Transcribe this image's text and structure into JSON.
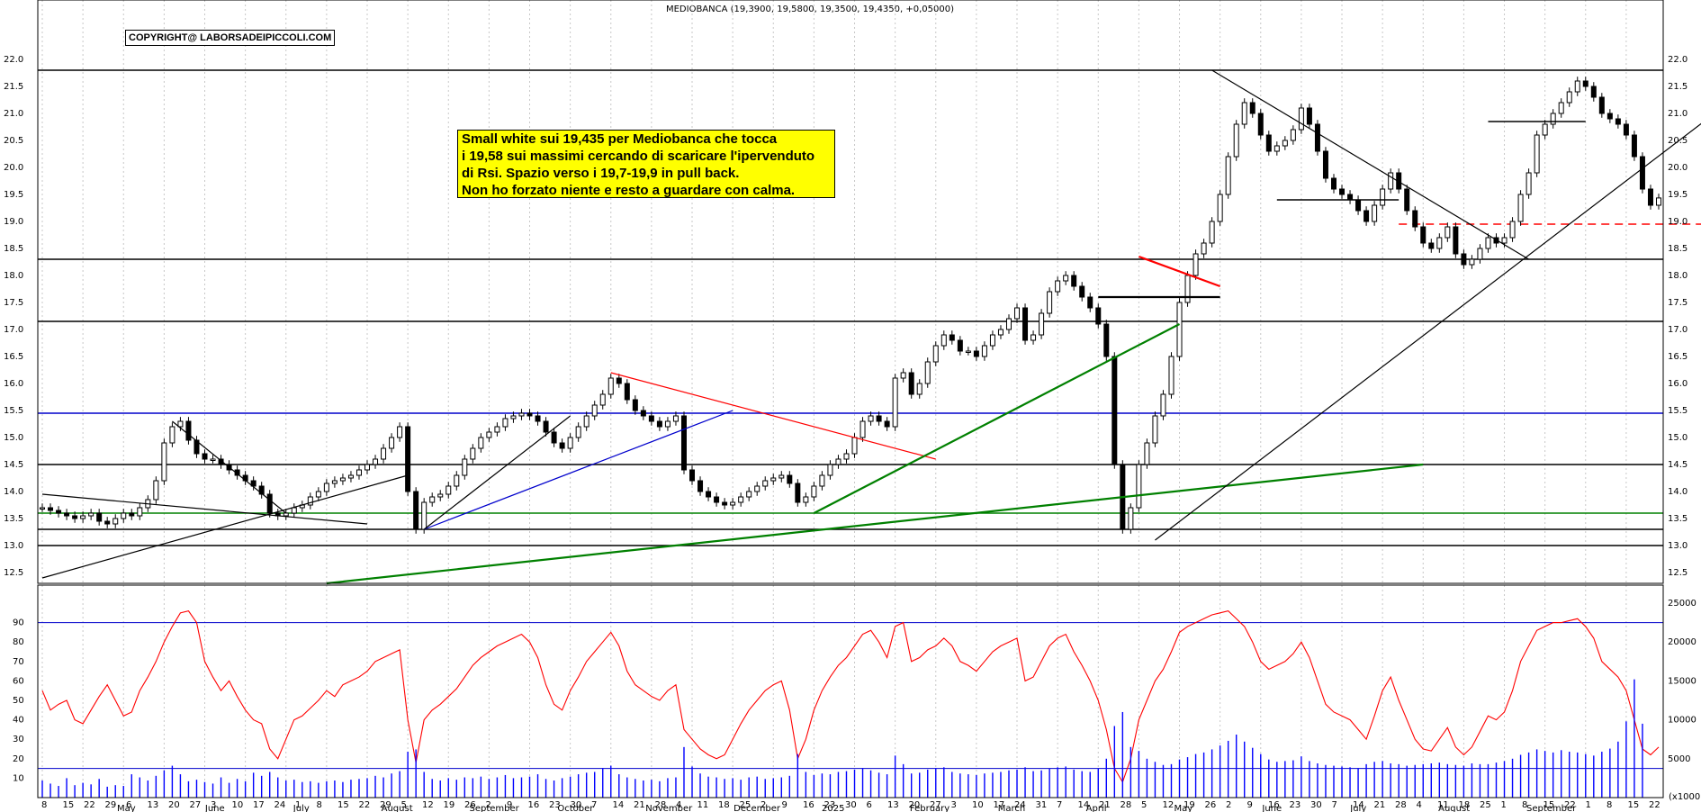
{
  "header": {
    "title": "MEDIOBANCA (19,3900, 19,5800, 19,3500, 19,4350, +0,05000)",
    "copyright": "COPYRIGHT@ LABORSADEIPICCOLI.COM"
  },
  "annotation": {
    "lines": [
      "Small white sui 19,435 per Mediobanca che tocca",
      "i 19,58 sui massimi cercando di scaricare l'ipervenduto",
      "di Rsi. Spazio verso i 19,7-19,9 in pull back.",
      "Non ho forzato niente e resto a guardare con calma."
    ]
  },
  "colors": {
    "price": "#000000",
    "rsi": "#ff0000",
    "volume": "#0000ff",
    "support_blue": "#0000cc",
    "support_green": "#008000",
    "trend_red": "#ff0000",
    "grid": "#c8c8c8"
  },
  "chart_data": [
    {
      "type": "candlestick",
      "title": "MEDIOBANCA (19,3900, 19,5800, 19,3500, 19,4350, +0,05000)",
      "ylim": [
        12.3,
        22.2
      ],
      "y_ticks": [
        "12.5",
        "13.0",
        "13.5",
        "14.0",
        "14.5",
        "15.0",
        "15.5",
        "16.0",
        "16.5",
        "17.0",
        "17.5",
        "18.0",
        "18.5",
        "19.0",
        "19.5",
        "20.0",
        "20.5",
        "21.0",
        "21.5",
        "22.0"
      ],
      "horizontal_levels": [
        {
          "value": 21.8,
          "color": "#000000"
        },
        {
          "value": 18.3,
          "color": "#000000"
        },
        {
          "value": 17.15,
          "color": "#000000"
        },
        {
          "value": 15.45,
          "color": "#0000cc"
        },
        {
          "value": 14.5,
          "color": "#000000"
        },
        {
          "value": 13.6,
          "color": "#008000"
        },
        {
          "value": 13.3,
          "color": "#000000"
        },
        {
          "value": 13.0,
          "color": "#000000"
        },
        {
          "value": 18.95,
          "color": "#ff0000",
          "dashed": true
        }
      ],
      "last": {
        "open": 19.39,
        "high": 19.58,
        "low": 19.35,
        "close": 19.435,
        "change": 0.05
      },
      "closes": [
        13.7,
        13.65,
        13.6,
        13.55,
        13.5,
        13.55,
        13.6,
        13.45,
        13.4,
        13.5,
        13.6,
        13.55,
        13.7,
        13.85,
        14.2,
        14.9,
        15.2,
        15.3,
        14.95,
        14.7,
        14.6,
        14.6,
        14.5,
        14.4,
        14.3,
        14.2,
        14.1,
        13.95,
        13.6,
        13.55,
        13.6,
        13.7,
        13.75,
        13.9,
        14.0,
        14.15,
        14.2,
        14.25,
        14.3,
        14.4,
        14.5,
        14.6,
        14.8,
        15.0,
        15.2,
        14.0,
        13.3,
        13.8,
        13.9,
        13.95,
        14.1,
        14.3,
        14.6,
        14.8,
        15.0,
        15.1,
        15.2,
        15.35,
        15.4,
        15.45,
        15.4,
        15.3,
        15.1,
        14.9,
        14.8,
        15.0,
        15.2,
        15.4,
        15.6,
        15.8,
        16.1,
        16.0,
        15.7,
        15.5,
        15.4,
        15.3,
        15.2,
        15.3,
        15.4,
        14.4,
        14.2,
        14.0,
        13.9,
        13.8,
        13.75,
        13.8,
        13.9,
        14.0,
        14.1,
        14.2,
        14.25,
        14.3,
        14.15,
        13.8,
        13.9,
        14.1,
        14.3,
        14.5,
        14.6,
        14.7,
        15.0,
        15.3,
        15.4,
        15.3,
        15.2,
        16.1,
        16.2,
        15.8,
        16.0,
        16.4,
        16.7,
        16.9,
        16.8,
        16.6,
        16.6,
        16.5,
        16.7,
        16.9,
        17.0,
        17.2,
        17.4,
        16.8,
        16.9,
        17.3,
        17.7,
        17.9,
        18.0,
        17.8,
        17.6,
        17.4,
        17.1,
        16.5,
        14.5,
        13.3,
        13.7,
        14.5,
        14.9,
        15.4,
        15.8,
        16.5,
        17.5,
        18.0,
        18.4,
        18.6,
        19.0,
        19.5,
        20.2,
        20.8,
        21.2,
        21.0,
        20.6,
        20.3,
        20.4,
        20.5,
        20.7,
        21.1,
        20.8,
        20.3,
        19.8,
        19.6,
        19.5,
        19.4,
        19.2,
        19.0,
        19.3,
        19.6,
        19.9,
        19.6,
        19.2,
        18.9,
        18.6,
        18.5,
        18.7,
        18.9,
        18.4,
        18.2,
        18.3,
        18.5,
        18.7,
        18.6,
        18.7,
        19.0,
        19.5,
        19.9,
        20.6,
        20.8,
        21.0,
        21.2,
        21.4,
        21.6,
        21.5,
        21.3,
        21.0,
        20.9,
        20.8,
        20.6,
        20.2,
        19.6,
        19.3,
        19.435
      ],
      "rsi": {
        "ylim": [
          0,
          100
        ],
        "levels": [
          90,
          15
        ],
        "y_ticks": [
          "10",
          "20",
          "30",
          "40",
          "50",
          "60",
          "70",
          "80",
          "90"
        ],
        "values": [
          55,
          45,
          48,
          50,
          40,
          38,
          45,
          52,
          58,
          50,
          42,
          44,
          55,
          62,
          70,
          80,
          88,
          95,
          96,
          90,
          70,
          62,
          55,
          60,
          52,
          45,
          40,
          38,
          25,
          20,
          30,
          40,
          42,
          46,
          50,
          55,
          52,
          58,
          60,
          62,
          65,
          70,
          72,
          74,
          76,
          40,
          18,
          40,
          45,
          48,
          52,
          56,
          62,
          68,
          72,
          75,
          78,
          80,
          82,
          84,
          80,
          72,
          58,
          48,
          45,
          55,
          62,
          70,
          75,
          80,
          85,
          78,
          65,
          58,
          55,
          52,
          50,
          55,
          58,
          35,
          30,
          25,
          22,
          20,
          22,
          30,
          38,
          45,
          50,
          55,
          58,
          60,
          45,
          20,
          30,
          45,
          55,
          62,
          68,
          72,
          78,
          84,
          86,
          80,
          72,
          88,
          90,
          70,
          72,
          76,
          78,
          82,
          78,
          70,
          68,
          65,
          70,
          75,
          78,
          80,
          82,
          60,
          62,
          70,
          78,
          82,
          84,
          75,
          68,
          60,
          50,
          35,
          15,
          8,
          20,
          40,
          50,
          60,
          66,
          75,
          85,
          88,
          90,
          92,
          94,
          95,
          96,
          92,
          88,
          80,
          70,
          66,
          68,
          70,
          74,
          80,
          72,
          60,
          48,
          44,
          42,
          40,
          35,
          30,
          42,
          55,
          62,
          50,
          40,
          30,
          25,
          24,
          30,
          36,
          26,
          22,
          26,
          34,
          42,
          40,
          44,
          55,
          70,
          78,
          86,
          88,
          90,
          90,
          91,
          92,
          88,
          82,
          70,
          66,
          62,
          55,
          40,
          25,
          22,
          26
        ]
      },
      "volume": {
        "ylim": [
          0,
          25000
        ],
        "y_ticks": [
          "5000",
          "10000",
          "15000",
          "20000",
          "25000"
        ],
        "unit_label": "(x1000)",
        "values": [
          2200,
          1800,
          1500,
          2500,
          1600,
          1900,
          1700,
          2400,
          1400,
          1600,
          1500,
          3000,
          2600,
          2200,
          2800,
          3500,
          4100,
          3000,
          2100,
          2300,
          2000,
          1800,
          2600,
          1900,
          2400,
          2100,
          3200,
          2800,
          3300,
          2600,
          2200,
          2300,
          2000,
          2100,
          1900,
          2100,
          2200,
          2000,
          2300,
          2400,
          2500,
          2800,
          2600,
          3100,
          3400,
          5900,
          6200,
          3300,
          2400,
          2200,
          2500,
          2300,
          2600,
          2500,
          2700,
          2400,
          2600,
          2900,
          2500,
          2600,
          2700,
          3000,
          2400,
          2200,
          2500,
          2700,
          3000,
          3200,
          3300,
          3800,
          4100,
          3000,
          2600,
          2400,
          2200,
          2300,
          2100,
          2500,
          2600,
          6500,
          4000,
          3100,
          2700,
          2600,
          2400,
          2500,
          2300,
          2600,
          2700,
          2400,
          2500,
          2600,
          2800,
          5600,
          3300,
          2900,
          3100,
          3000,
          3300,
          3400,
          3600,
          3800,
          3500,
          3200,
          3000,
          5400,
          4300,
          3100,
          3200,
          3600,
          3800,
          3900,
          3300,
          3100,
          3000,
          2900,
          3100,
          3200,
          3300,
          3500,
          3600,
          3900,
          3400,
          3500,
          3700,
          3900,
          4000,
          3600,
          3400,
          3300,
          3700,
          5000,
          9200,
          11000,
          6500,
          6000,
          5000,
          4600,
          4200,
          4300,
          4900,
          5200,
          5600,
          5800,
          6200,
          6700,
          7300,
          8100,
          7200,
          6400,
          5600,
          4900,
          4600,
          4700,
          4800,
          5300,
          4700,
          4400,
          4200,
          4100,
          4000,
          3900,
          3800,
          4300,
          4600,
          4700,
          4400,
          4300,
          4100,
          4200,
          4300,
          4400,
          4500,
          4300,
          4200,
          4100,
          4400,
          4300,
          4300,
          4500,
          4700,
          5000,
          5500,
          5800,
          6200,
          6000,
          5800,
          6100,
          5900,
          5800,
          5600,
          5400,
          5900,
          6300,
          7200,
          9800,
          15200,
          9500
        ]
      },
      "x_ticks": {
        "days": [
          "8",
          "15",
          "22",
          "29",
          "6",
          "13",
          "20",
          "27",
          "3",
          "10",
          "17",
          "24",
          "1",
          "8",
          "15",
          "22",
          "29",
          "5",
          "12",
          "19",
          "26",
          "2",
          "9",
          "16",
          "23",
          "30",
          "7",
          "14",
          "21",
          "28",
          "4",
          "11",
          "18",
          "25",
          "2",
          "9",
          "16",
          "23",
          "30",
          "6",
          "13",
          "20",
          "27",
          "3",
          "10",
          "17",
          "24",
          "31",
          "7",
          "14",
          "21",
          "28",
          "5",
          "12",
          "19",
          "26",
          "2",
          "9",
          "16",
          "23",
          "30",
          "7",
          "14",
          "21",
          "28",
          "4",
          "11",
          "18",
          "25",
          "1",
          "8",
          "15",
          "22",
          "1",
          "8",
          "15",
          "22"
        ],
        "months": [
          "May",
          "June",
          "July",
          "August",
          "September",
          "October",
          "November",
          "December",
          "2025",
          "February",
          "March",
          "April",
          "May",
          "June",
          "July",
          "August",
          "September"
        ]
      }
    }
  ]
}
